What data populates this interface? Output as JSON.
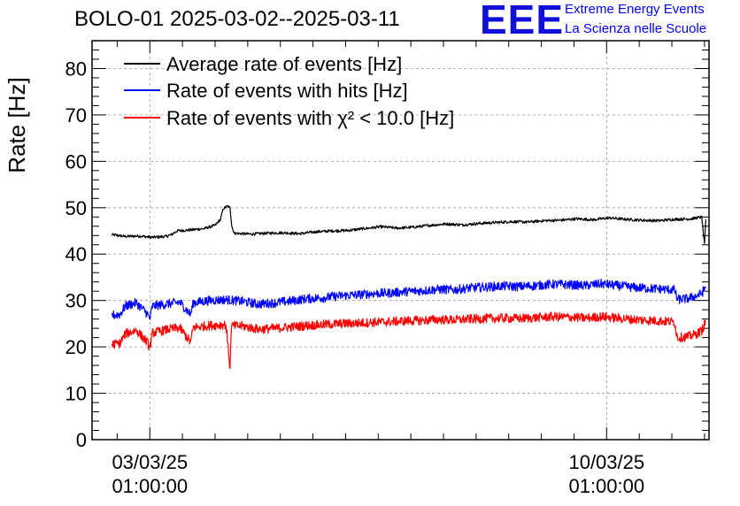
{
  "header": {
    "title": "BOLO-01 2025-03-02--2025-03-11",
    "logo_mark": "EEE",
    "logo_line1": "Extreme Energy Events",
    "logo_line2": "La Scienza nelle Scuole"
  },
  "chart_data": {
    "type": "line",
    "title": "BOLO-01 2025-03-02--2025-03-11",
    "ylabel": "Rate [Hz]",
    "xlabel": "",
    "xlim": [
      "2025-03-02 03:45:00",
      "2025-03-11 14:40:00"
    ],
    "ylim": [
      0,
      86
    ],
    "grid": true,
    "legend_position": "top-left",
    "y_ticks": [
      0,
      10,
      20,
      30,
      40,
      50,
      60,
      70,
      80
    ],
    "x_ticks": [
      {
        "x": "2025-03-03 01:00:00",
        "date": "03/03/25",
        "time": "01:00:00"
      },
      {
        "x": "2025-03-10 01:00:00",
        "date": "10/03/25",
        "time": "01:00:00"
      }
    ],
    "series": [
      {
        "name": "Average rate of events [Hz]",
        "color": "#000000",
        "noise": 0.3,
        "points": [
          [
            "2025-03-02 11:00",
            44.2
          ],
          [
            "2025-03-02 16:00",
            43.8
          ],
          [
            "2025-03-02 21:00",
            43.9
          ],
          [
            "2025-03-03 02:00",
            43.6
          ],
          [
            "2025-03-03 07:00",
            43.8
          ],
          [
            "2025-03-03 09:00",
            44.2
          ],
          [
            "2025-03-03 11:00",
            45.0
          ],
          [
            "2025-03-03 16:00",
            45.2
          ],
          [
            "2025-03-03 21:00",
            45.5
          ],
          [
            "2025-03-04 01:00",
            46.2
          ],
          [
            "2025-03-04 03:00",
            47.5
          ],
          [
            "2025-03-04 04:00",
            49.8
          ],
          [
            "2025-03-04 05:30",
            50.3
          ],
          [
            "2025-03-04 06:30",
            50.0
          ],
          [
            "2025-03-04 07:10",
            46.0
          ],
          [
            "2025-03-04 08:00",
            44.5
          ],
          [
            "2025-03-04 14:00",
            44.3
          ],
          [
            "2025-03-04 20:00",
            44.5
          ],
          [
            "2025-03-05 02:00",
            44.6
          ],
          [
            "2025-03-05 08:00",
            44.4
          ],
          [
            "2025-03-05 14:00",
            44.8
          ],
          [
            "2025-03-05 20:00",
            45.0
          ],
          [
            "2025-03-06 02:00",
            45.1
          ],
          [
            "2025-03-06 08:00",
            45.5
          ],
          [
            "2025-03-06 14:00",
            45.9
          ],
          [
            "2025-03-06 20:00",
            45.6
          ],
          [
            "2025-03-07 02:00",
            45.8
          ],
          [
            "2025-03-07 08:00",
            46.2
          ],
          [
            "2025-03-07 14:00",
            46.5
          ],
          [
            "2025-03-07 20:00",
            46.3
          ],
          [
            "2025-03-08 02:00",
            46.6
          ],
          [
            "2025-03-08 08:00",
            46.8
          ],
          [
            "2025-03-08 14:00",
            47.0
          ],
          [
            "2025-03-08 20:00",
            46.9
          ],
          [
            "2025-03-09 02:00",
            47.2
          ],
          [
            "2025-03-09 08:00",
            47.3
          ],
          [
            "2025-03-09 14:00",
            47.6
          ],
          [
            "2025-03-09 20:00",
            47.4
          ],
          [
            "2025-03-10 02:00",
            47.8
          ],
          [
            "2025-03-10 08:00",
            47.5
          ],
          [
            "2025-03-10 14:00",
            47.3
          ],
          [
            "2025-03-10 20:00",
            47.2
          ],
          [
            "2025-03-11 02:00",
            47.5
          ],
          [
            "2025-03-11 08:00",
            47.6
          ],
          [
            "2025-03-11 12:00",
            48.0
          ],
          [
            "2025-03-11 13:00",
            42.0
          ],
          [
            "2025-03-11 13:30",
            47.5
          ]
        ]
      },
      {
        "name": "Rate of events with hits [Hz]",
        "color": "#0000ff",
        "noise": 1.0,
        "points": [
          [
            "2025-03-02 11:00",
            26.8
          ],
          [
            "2025-03-02 14:00",
            27.0
          ],
          [
            "2025-03-02 16:00",
            28.8
          ],
          [
            "2025-03-02 20:00",
            29.5
          ],
          [
            "2025-03-03 00:00",
            27.2
          ],
          [
            "2025-03-03 01:00",
            26.0
          ],
          [
            "2025-03-03 02:00",
            28.8
          ],
          [
            "2025-03-03 08:00",
            29.3
          ],
          [
            "2025-03-03 12:00",
            29.6
          ],
          [
            "2025-03-03 16:00",
            27.0
          ],
          [
            "2025-03-03 17:00",
            29.5
          ],
          [
            "2025-03-03 23:00",
            30.0
          ],
          [
            "2025-03-04 05:00",
            30.2
          ],
          [
            "2025-03-04 11:00",
            29.8
          ],
          [
            "2025-03-04 17:00",
            29.2
          ],
          [
            "2025-03-04 23:00",
            29.5
          ],
          [
            "2025-03-05 05:00",
            29.9
          ],
          [
            "2025-03-05 11:00",
            30.4
          ],
          [
            "2025-03-05 17:00",
            30.6
          ],
          [
            "2025-03-05 23:00",
            31.0
          ],
          [
            "2025-03-06 05:00",
            31.2
          ],
          [
            "2025-03-06 11:00",
            31.5
          ],
          [
            "2025-03-06 17:00",
            31.6
          ],
          [
            "2025-03-06 23:00",
            31.9
          ],
          [
            "2025-03-07 05:00",
            32.1
          ],
          [
            "2025-03-07 11:00",
            32.4
          ],
          [
            "2025-03-07 17:00",
            32.3
          ],
          [
            "2025-03-07 23:00",
            32.7
          ],
          [
            "2025-03-08 05:00",
            32.9
          ],
          [
            "2025-03-08 11:00",
            33.1
          ],
          [
            "2025-03-08 17:00",
            33.0
          ],
          [
            "2025-03-08 23:00",
            33.2
          ],
          [
            "2025-03-09 05:00",
            33.5
          ],
          [
            "2025-03-09 11:00",
            33.4
          ],
          [
            "2025-03-09 17:00",
            33.2
          ],
          [
            "2025-03-09 23:00",
            33.6
          ],
          [
            "2025-03-10 05:00",
            33.2
          ],
          [
            "2025-03-10 11:00",
            32.8
          ],
          [
            "2025-03-10 17:00",
            32.6
          ],
          [
            "2025-03-10 23:00",
            32.4
          ],
          [
            "2025-03-11 02:00",
            32.3
          ],
          [
            "2025-03-11 03:00",
            30.2
          ],
          [
            "2025-03-11 07:00",
            30.4
          ],
          [
            "2025-03-11 10:00",
            31.0
          ],
          [
            "2025-03-11 12:00",
            31.5
          ],
          [
            "2025-03-11 13:30",
            33.0
          ]
        ]
      },
      {
        "name": "Rate of events with χ² < 10.0 [Hz]",
        "color": "#ff0000",
        "noise": 1.0,
        "points": [
          [
            "2025-03-02 11:00",
            20.5
          ],
          [
            "2025-03-02 14:00",
            20.8
          ],
          [
            "2025-03-02 16:00",
            22.8
          ],
          [
            "2025-03-02 20:00",
            23.6
          ],
          [
            "2025-03-03 00:00",
            21.0
          ],
          [
            "2025-03-03 01:00",
            19.8
          ],
          [
            "2025-03-03 02:00",
            23.0
          ],
          [
            "2025-03-03 08:00",
            23.8
          ],
          [
            "2025-03-03 12:00",
            24.1
          ],
          [
            "2025-03-03 16:00",
            21.0
          ],
          [
            "2025-03-03 17:00",
            24.2
          ],
          [
            "2025-03-03 23:00",
            24.6
          ],
          [
            "2025-03-04 05:00",
            24.8
          ],
          [
            "2025-03-04 06:30",
            15.5
          ],
          [
            "2025-03-04 07:00",
            24.5
          ],
          [
            "2025-03-04 11:00",
            24.5
          ],
          [
            "2025-03-04 17:00",
            23.8
          ],
          [
            "2025-03-04 23:00",
            24.0
          ],
          [
            "2025-03-05 05:00",
            24.3
          ],
          [
            "2025-03-05 11:00",
            24.6
          ],
          [
            "2025-03-05 17:00",
            24.8
          ],
          [
            "2025-03-05 23:00",
            25.0
          ],
          [
            "2025-03-06 05:00",
            25.1
          ],
          [
            "2025-03-06 11:00",
            25.3
          ],
          [
            "2025-03-06 17:00",
            25.4
          ],
          [
            "2025-03-06 23:00",
            25.6
          ],
          [
            "2025-03-07 05:00",
            25.7
          ],
          [
            "2025-03-07 11:00",
            25.9
          ],
          [
            "2025-03-07 17:00",
            25.8
          ],
          [
            "2025-03-07 23:00",
            26.0
          ],
          [
            "2025-03-08 05:00",
            26.1
          ],
          [
            "2025-03-08 11:00",
            26.2
          ],
          [
            "2025-03-08 17:00",
            26.1
          ],
          [
            "2025-03-08 23:00",
            26.3
          ],
          [
            "2025-03-09 05:00",
            26.5
          ],
          [
            "2025-03-09 11:00",
            26.4
          ],
          [
            "2025-03-09 17:00",
            26.2
          ],
          [
            "2025-03-09 23:00",
            26.5
          ],
          [
            "2025-03-10 05:00",
            26.2
          ],
          [
            "2025-03-10 11:00",
            25.9
          ],
          [
            "2025-03-10 17:00",
            25.7
          ],
          [
            "2025-03-10 23:00",
            25.5
          ],
          [
            "2025-03-11 02:00",
            25.4
          ],
          [
            "2025-03-11 03:00",
            22.0
          ],
          [
            "2025-03-11 07:00",
            22.2
          ],
          [
            "2025-03-11 10:00",
            22.8
          ],
          [
            "2025-03-11 12:00",
            23.5
          ],
          [
            "2025-03-11 13:30",
            25.5
          ]
        ]
      }
    ]
  }
}
